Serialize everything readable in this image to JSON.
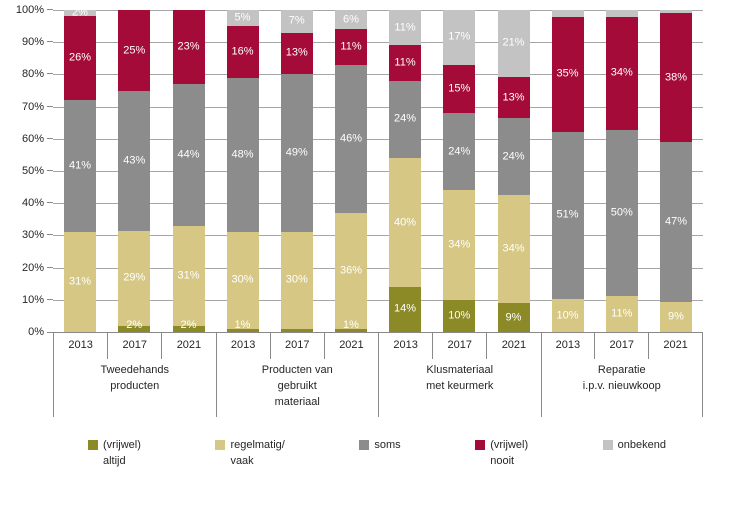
{
  "chart_data": {
    "type": "bar",
    "subtype": "stacked-100-percent-column",
    "title": "",
    "grid": "horizontal",
    "legend_position": "bottom",
    "y_axis": {
      "ticks": [
        "0%",
        "10%",
        "20%",
        "30%",
        "40%",
        "50%",
        "60%",
        "70%",
        "80%",
        "90%",
        "100%"
      ],
      "range": [
        0,
        100
      ]
    },
    "series": [
      {
        "name": "(vrijwel) altijd",
        "name_lines": [
          "(vrijwel)",
          "altijd"
        ],
        "color": "#8C8A26"
      },
      {
        "name": "regelmatig/ vaak",
        "name_lines": [
          "regelmatig/",
          "vaak"
        ],
        "color": "#D6C884"
      },
      {
        "name": "soms",
        "name_lines": [
          "soms"
        ],
        "color": "#8C8C8C"
      },
      {
        "name": "(vrijwel) nooit",
        "name_lines": [
          "(vrijwel)",
          "nooit"
        ],
        "color": "#A50B38"
      },
      {
        "name": "onbekend",
        "name_lines": [
          "onbekend"
        ],
        "color": "#C3C3C3"
      }
    ],
    "groups": [
      {
        "label": "Tweedehands producten",
        "label_lines": [
          "Tweedehands",
          "producten"
        ],
        "bars": [
          {
            "year": "2013",
            "values": [
              0,
              31,
              41,
              26,
              2
            ],
            "labels": [
              "",
              "31%",
              "41%",
              "26%",
              "2%"
            ]
          },
          {
            "year": "2017",
            "values": [
              2,
              29,
              43,
              25,
              0
            ],
            "labels": [
              "2%",
              "29%",
              "43%",
              "25%",
              ""
            ]
          },
          {
            "year": "2021",
            "values": [
              2,
              31,
              44,
              23,
              0
            ],
            "labels": [
              "2%",
              "31%",
              "44%",
              "23%",
              ""
            ]
          }
        ]
      },
      {
        "label": "Producten van gebruikt materiaal",
        "label_lines": [
          "Producten van",
          "gebruikt",
          "materiaal"
        ],
        "bars": [
          {
            "year": "2013",
            "values": [
              1,
              30,
              48,
              16,
              5
            ],
            "labels": [
              "1%",
              "30%",
              "48%",
              "16%",
              "5%"
            ]
          },
          {
            "year": "2017",
            "values": [
              1,
              30,
              49,
              13,
              7
            ],
            "labels": [
              "",
              "30%",
              "49%",
              "13%",
              "7%"
            ]
          },
          {
            "year": "2021",
            "values": [
              1,
              36,
              46,
              11,
              6
            ],
            "labels": [
              "1%",
              "36%",
              "46%",
              "11%",
              "6%"
            ]
          }
        ]
      },
      {
        "label": "Klusmateriaal met keurmerk",
        "label_lines": [
          "Klusmateriaal",
          "met keurmerk"
        ],
        "bars": [
          {
            "year": "2013",
            "values": [
              14,
              40,
              24,
              11,
              11
            ],
            "labels": [
              "14%",
              "40%",
              "24%",
              "11%",
              "11%"
            ]
          },
          {
            "year": "2017",
            "values": [
              10,
              34,
              24,
              15,
              17
            ],
            "labels": [
              "10%",
              "34%",
              "24%",
              "15%",
              "17%"
            ]
          },
          {
            "year": "2021",
            "values": [
              9,
              34,
              24,
              13,
              21
            ],
            "labels": [
              "9%",
              "34%",
              "24%",
              "13%",
              "21%"
            ]
          }
        ]
      },
      {
        "label": "Reparatie i.p.v. nieuwkoop",
        "label_lines": [
          "Reparatie",
          "i.p.v. nieuwkoop"
        ],
        "bars": [
          {
            "year": "2013",
            "values": [
              0,
              10,
              51,
              35,
              2
            ],
            "labels": [
              "",
              "10%",
              "51%",
              "35%",
              ""
            ]
          },
          {
            "year": "2017",
            "values": [
              0,
              11,
              50,
              34,
              2
            ],
            "labels": [
              "",
              "11%",
              "50%",
              "34%",
              ""
            ]
          },
          {
            "year": "2021",
            "values": [
              0,
              9,
              47,
              38,
              1
            ],
            "labels": [
              "",
              "9%",
              "47%",
              "38%",
              ""
            ]
          }
        ]
      }
    ],
    "colors": {
      "gridline": "#A6A6A6",
      "axis_line": "#898989",
      "bar_label_text": "#FFFFFF",
      "axis_text": "#262626"
    }
  }
}
